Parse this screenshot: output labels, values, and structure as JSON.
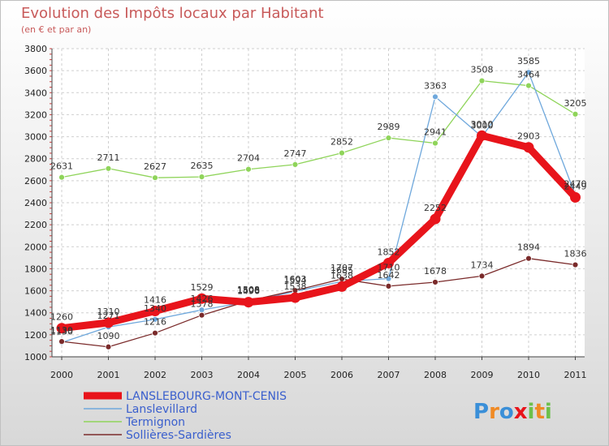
{
  "chart_data": {
    "type": "line",
    "title": "Evolution des Impôts locaux par Habitant",
    "subtitle": "(en € et par an)",
    "xlabel": "",
    "ylabel": "",
    "ylim": [
      1000,
      3800
    ],
    "yticks": [
      1000,
      1200,
      1400,
      1600,
      1800,
      2000,
      2200,
      2400,
      2600,
      2800,
      3000,
      3200,
      3400,
      3600,
      3800
    ],
    "categories": [
      "2000",
      "2001",
      "2002",
      "2003",
      "2004",
      "2005",
      "2006",
      "2007",
      "2008",
      "2009",
      "2010",
      "2011"
    ],
    "grid": true,
    "legend_position": "bottom-left",
    "series": [
      {
        "name": "Termignon",
        "color": "#8fd45a",
        "values": [
          2631,
          2711,
          2627,
          2635,
          2704,
          2747,
          2852,
          2989,
          2941,
          3508,
          3464,
          3205
        ],
        "labels": [
          "2631",
          "2711",
          "2627",
          "2635",
          "2704",
          "2747",
          "2852",
          "2989",
          "2941",
          "3508",
          "3464",
          "3205"
        ]
      },
      {
        "name": "Lanslevillard",
        "color": "#6fa8dc",
        "values": [
          1130,
          1271,
          1340,
          1426,
          1500,
          1594,
          1685,
          1710,
          3363,
          3000,
          3585,
          2470
        ],
        "labels": [
          "1130",
          "1271",
          "1340",
          "1426",
          "1500",
          "1594",
          "1685",
          "1710",
          "3363",
          "3000",
          "3585",
          "2470"
        ]
      },
      {
        "name": "Sollières-Sardières",
        "color": "#7a2a2a",
        "values": [
          1139,
          1090,
          1216,
          1378,
          1508,
          1603,
          1707,
          1642,
          1678,
          1734,
          1894,
          1836
        ],
        "labels": [
          "1139",
          "1090",
          "1216",
          "1378",
          "1508",
          "1603",
          "1707",
          "1642",
          "1678",
          "1734",
          "1894",
          "1836"
        ]
      },
      {
        "name": "LANSLEBOURG-MONT-CENIS",
        "color": "#e8141b",
        "values": [
          1260,
          1310,
          1416,
          1529,
          1496,
          1538,
          1638,
          1852,
          2252,
          3010,
          2903,
          2449
        ],
        "labels": [
          "1260",
          "1310",
          "1416",
          "1529",
          "1496",
          "1538",
          "1638",
          "1852",
          "2252",
          "3010",
          "2903",
          "2449"
        ]
      }
    ]
  },
  "legend": {
    "items": [
      {
        "name": "LANSLEBOURG-MONT-CENIS",
        "color": "#e8141b",
        "weight": "thick"
      },
      {
        "name": "Lanslevillard",
        "color": "#6fa8dc",
        "weight": "thin"
      },
      {
        "name": "Termignon",
        "color": "#8fd45a",
        "weight": "thin"
      },
      {
        "name": "Sollières-Sardières",
        "color": "#7a2a2a",
        "weight": "thin"
      }
    ]
  },
  "branding": {
    "letters": [
      {
        "ch": "P",
        "color": "#3a8fd8"
      },
      {
        "ch": "r",
        "color": "#f08a24"
      },
      {
        "ch": "o",
        "color": "#3a8fd8"
      },
      {
        "ch": "x",
        "color": "#e8141b"
      },
      {
        "ch": "i",
        "color": "#6cc04a"
      },
      {
        "ch": "t",
        "color": "#f08a24"
      },
      {
        "ch": "i",
        "color": "#6cc04a"
      }
    ]
  }
}
